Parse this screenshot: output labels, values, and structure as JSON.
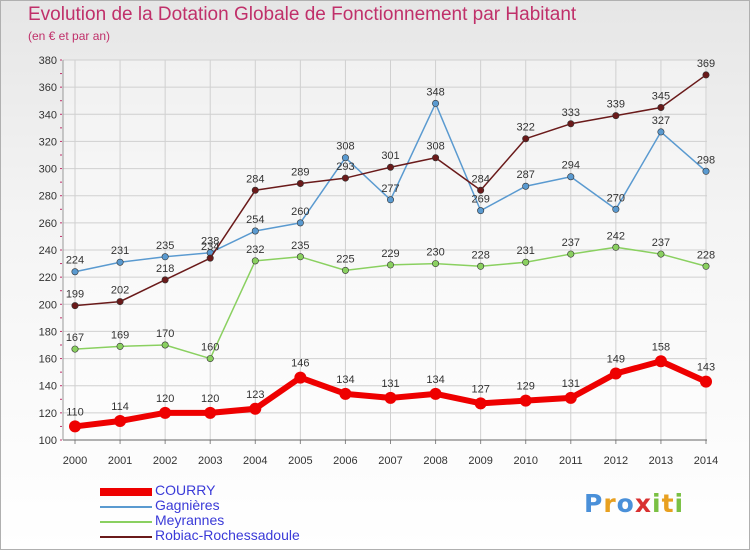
{
  "title": "Evolution de la Dotation Globale de Fonctionnement par Habitant",
  "subtitle": "(en € et par an)",
  "logo": {
    "text": "Proxiti",
    "letters": [
      "P",
      "r",
      "o",
      "x",
      "i",
      "t",
      "i"
    ],
    "colors": [
      "#4a90d9",
      "#e8a020",
      "#4a90d9",
      "#d93030",
      "#7ac043",
      "#e8a020",
      "#7ac043"
    ]
  },
  "colors": {
    "title": "#c0306a",
    "axis_text": "#333333",
    "grid": "#d0d0d0",
    "axis_ticks": "#c0306a"
  },
  "chart_data": {
    "type": "line",
    "x": [
      "2000",
      "2001",
      "2002",
      "2003",
      "2004",
      "2005",
      "2006",
      "2007",
      "2008",
      "2009",
      "2010",
      "2011",
      "2012",
      "2013",
      "2014"
    ],
    "ylim": [
      100,
      380
    ],
    "yticks": [
      100,
      120,
      140,
      160,
      180,
      200,
      220,
      240,
      260,
      280,
      300,
      320,
      340,
      360,
      380
    ],
    "grid": true,
    "legend_position": "bottom-left",
    "series": [
      {
        "name": "COURRY",
        "color": "#ee0000",
        "width": 6,
        "values": [
          110,
          114,
          120,
          120,
          123,
          146,
          134,
          131,
          134,
          127,
          129,
          131,
          149,
          158,
          143
        ]
      },
      {
        "name": "Gagnières",
        "color": "#5a9ad0",
        "width": 1.5,
        "values": [
          224,
          231,
          235,
          238,
          254,
          260,
          308,
          277,
          348,
          269,
          287,
          294,
          270,
          327,
          298
        ]
      },
      {
        "name": "Meyrannes",
        "color": "#8ad060",
        "width": 1.5,
        "values": [
          167,
          169,
          170,
          160,
          232,
          235,
          225,
          229,
          230,
          228,
          231,
          237,
          242,
          237,
          228
        ]
      },
      {
        "name": "Robiac-Rochessadoule",
        "color": "#6a1a1a",
        "width": 1.5,
        "values": [
          199,
          202,
          218,
          234,
          284,
          289,
          293,
          301,
          308,
          284,
          322,
          333,
          339,
          345,
          369
        ]
      }
    ]
  }
}
